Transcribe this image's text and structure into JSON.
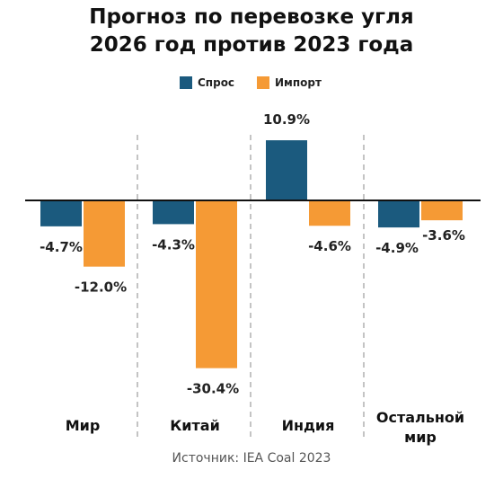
{
  "chart_data": {
    "type": "bar",
    "title": "Прогноз по перевозке угля\n2026 год против 2023 года",
    "title_lines": [
      "Прогноз по перевозке угля",
      "2026 год против 2023 года"
    ],
    "categories": [
      "Мир",
      "Китай",
      "Индия",
      "Остальной мир"
    ],
    "category_lines": [
      [
        "Мир"
      ],
      [
        "Китай"
      ],
      [
        "Индия"
      ],
      [
        "Остальной",
        "мир"
      ]
    ],
    "series": [
      {
        "name": "Спрос",
        "color": "#1b5a7e",
        "values": [
          -4.7,
          -4.3,
          10.9,
          -4.9
        ],
        "labels": [
          "-4.7%",
          "-4.3%",
          "10.9%",
          "-4.9%"
        ]
      },
      {
        "name": "Импорт",
        "color": "#f59a35",
        "values": [
          -12.0,
          -30.4,
          -4.6,
          -3.6
        ],
        "labels": [
          "-12.0%",
          "-30.4%",
          "-4.6%",
          "-3.6%"
        ]
      }
    ],
    "unit": "%",
    "ylim": [
      -32,
      12
    ],
    "grid": false,
    "legend_position": "top-center",
    "separators": "dashed vertical lines between groups"
  },
  "legend": {
    "demand_label": "Спрос",
    "import_label": "Импорт"
  },
  "source": "Источник: IEA Coal 2023"
}
